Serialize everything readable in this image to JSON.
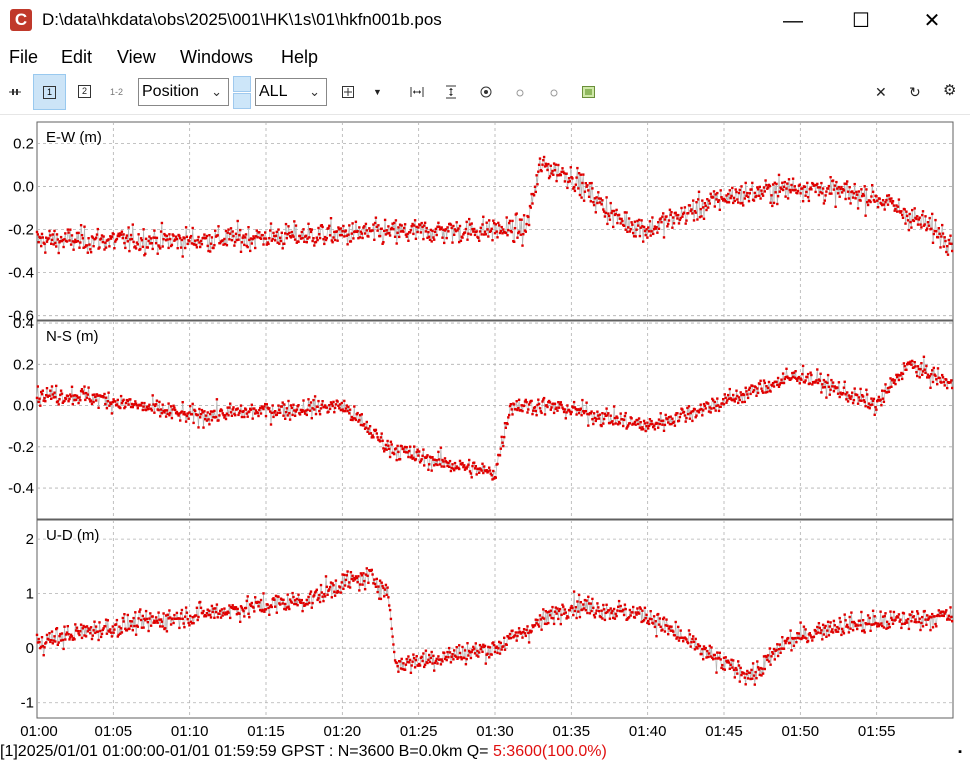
{
  "window": {
    "app_icon": "C",
    "title": "D:\\data\\hkdata\\obs\\2025\\001\\HK\\1s\\01\\hkfn001b.pos",
    "minimize": "—",
    "maximize": "☐",
    "close": "✕"
  },
  "menu": [
    "File",
    "Edit",
    "View",
    "Windows",
    "Help"
  ],
  "toolbar": {
    "plot1": "1",
    "plot2": "2",
    "plot12": "1-2",
    "plot_type": "Position",
    "solution_filter": "ALL"
  },
  "colors": {
    "points": "#e00000",
    "connect_line": "#b4b4b4",
    "grid": "#b0b0b0",
    "frame": "#606060"
  },
  "chart_data": {
    "type": "scatter",
    "x_ticks": [
      "01:00",
      "01:05",
      "01:10",
      "01:15",
      "01:20",
      "01:25",
      "01:30",
      "01:35",
      "01:40",
      "01:45",
      "01:50",
      "01:55"
    ],
    "xlim": [
      "01:00:00",
      "01:59:59"
    ],
    "panels": [
      {
        "label": "E-W (m)",
        "ylim": [
          -0.62,
          0.3
        ],
        "y_ticks": [
          0.2,
          0.0,
          -0.2,
          -0.4,
          -0.6
        ],
        "tick_labels": [
          "0.2",
          "0.0",
          "-0.2",
          "-0.4",
          "-0.6"
        ],
        "trend_minutes": [
          0,
          10,
          20,
          30,
          32,
          33,
          35,
          38,
          40,
          45,
          50,
          55,
          60
        ],
        "trend_values": [
          -0.25,
          -0.25,
          -0.22,
          -0.2,
          -0.2,
          0.1,
          0.05,
          -0.15,
          -0.2,
          -0.05,
          0.0,
          -0.05,
          -0.25
        ],
        "noise": 0.09
      },
      {
        "label": "N-S (m)",
        "ylim": [
          -0.55,
          0.41
        ],
        "y_ticks": [
          0.4,
          0.2,
          0.0,
          -0.2,
          -0.4
        ],
        "tick_labels": [
          "0.4",
          "0.2",
          "0.0",
          "-0.2",
          "-0.4"
        ],
        "trend_minutes": [
          0,
          3,
          10,
          20,
          23,
          25,
          30,
          31,
          33,
          35,
          40,
          45,
          48,
          50,
          55,
          57,
          60
        ],
        "trend_values": [
          0.05,
          0.05,
          -0.05,
          0.0,
          -0.2,
          -0.25,
          -0.33,
          0.0,
          0.0,
          -0.02,
          -0.1,
          0.02,
          0.1,
          0.15,
          0.0,
          0.2,
          0.1
        ],
        "noise": 0.07
      },
      {
        "label": "U-D (m)",
        "ylim": [
          -1.28,
          2.35
        ],
        "y_ticks": [
          2,
          1,
          0,
          -1
        ],
        "tick_labels": [
          "2",
          "1",
          "0",
          "-1"
        ],
        "trend_minutes": [
          0,
          3,
          10,
          18,
          20,
          22,
          23,
          23.5,
          30,
          35,
          40,
          45,
          47,
          49,
          52,
          60
        ],
        "trend_values": [
          0.1,
          0.3,
          0.6,
          0.9,
          1.2,
          1.3,
          1.0,
          -0.3,
          0.0,
          0.8,
          0.6,
          -0.3,
          -0.5,
          0.1,
          0.4,
          0.6
        ],
        "noise": 0.3
      }
    ]
  },
  "status": {
    "text": "[1]2025/01/01 01:00:00-01/01 01:59:59 GPST : N=3600 B=0.0km Q= ",
    "quality": "5:3600(100.0%)"
  }
}
